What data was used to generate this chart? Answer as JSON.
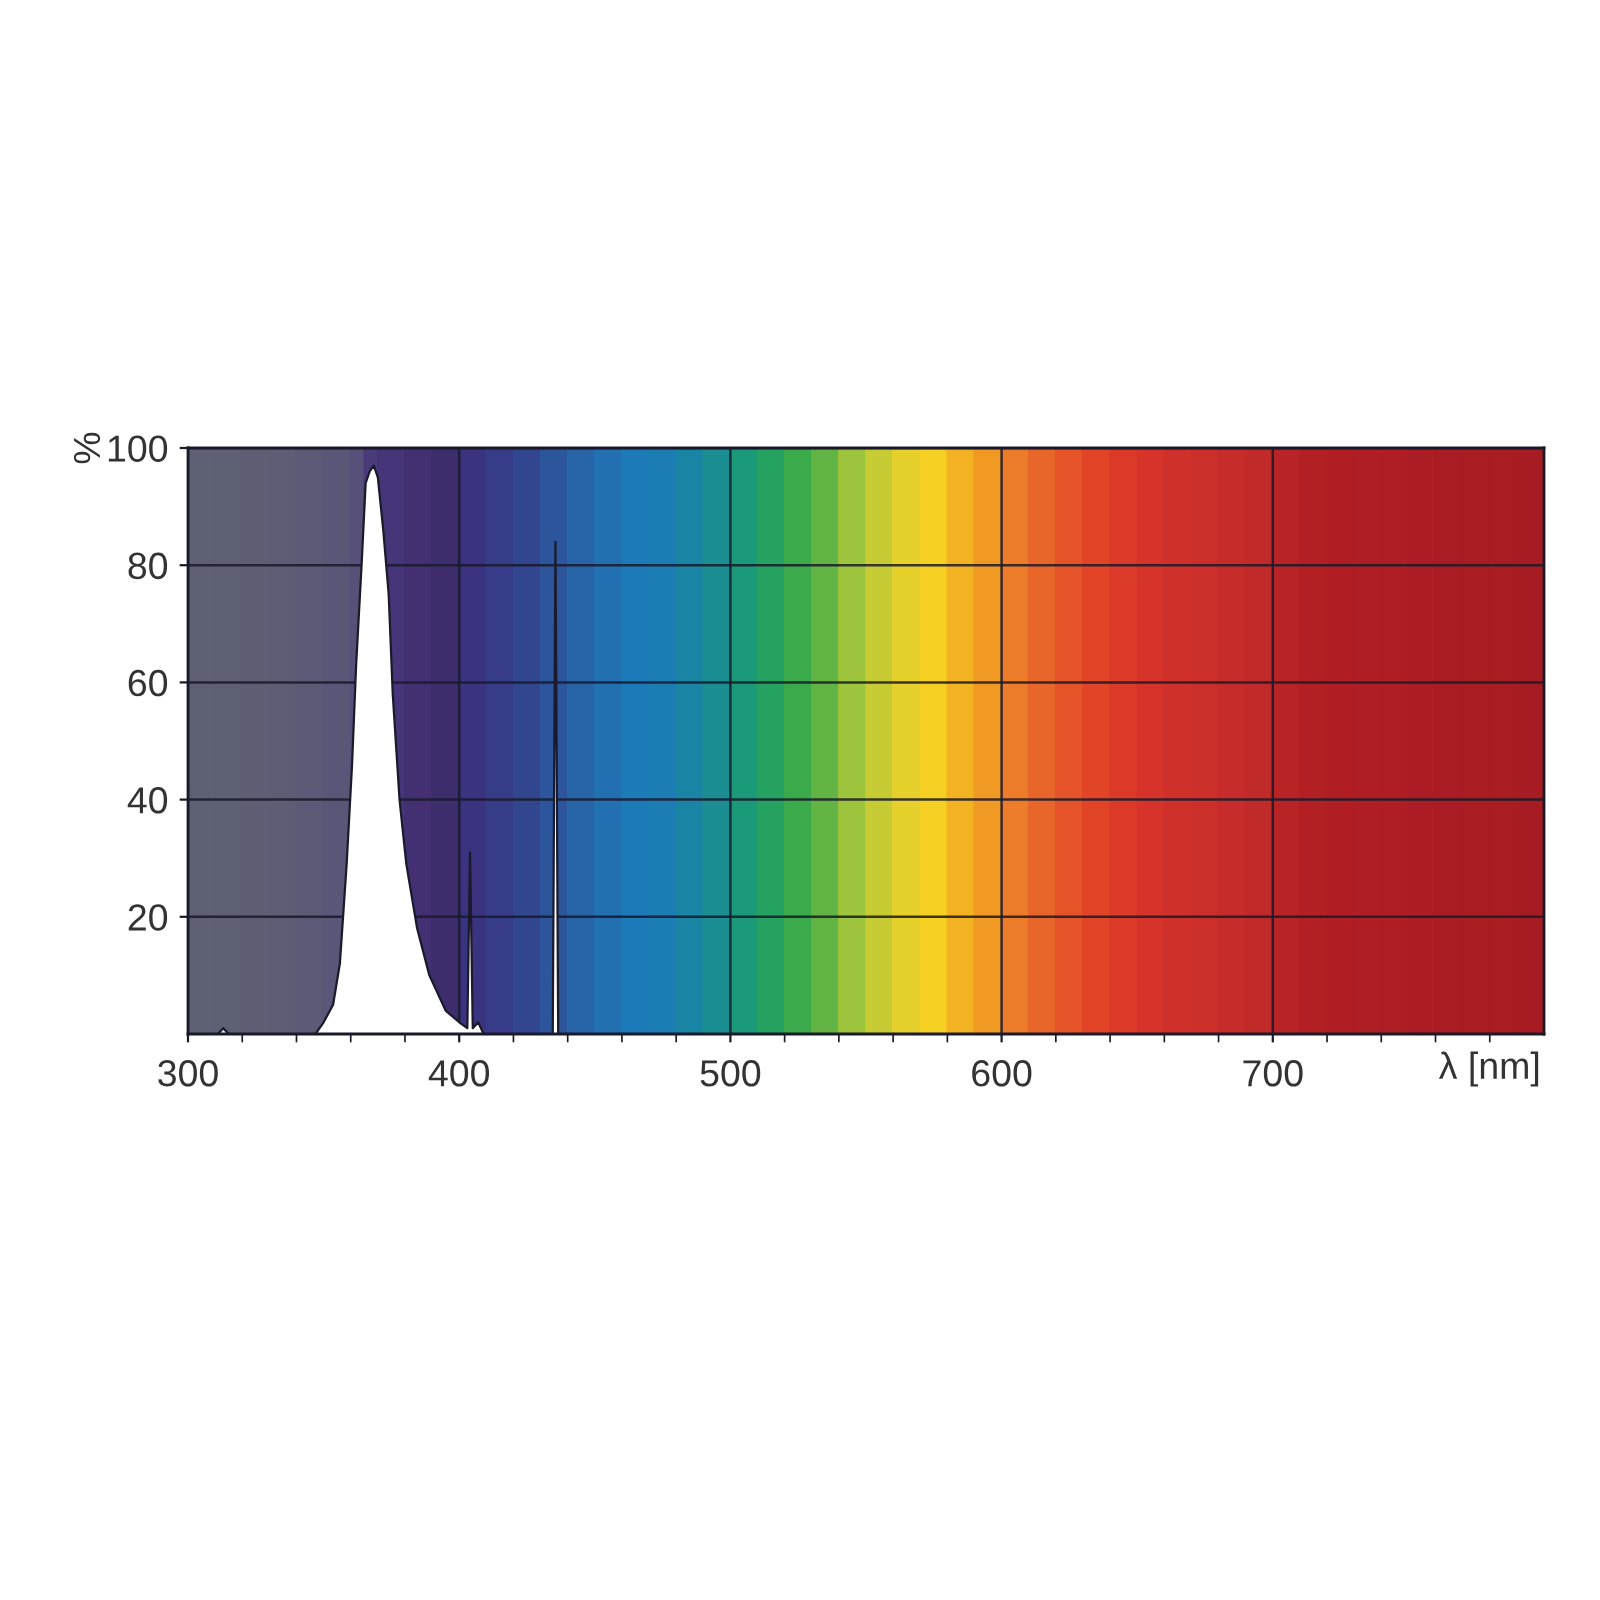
{
  "chart_data": {
    "type": "area",
    "xlabel": "λ [nm]",
    "ylabel": "%",
    "xlim": [
      300,
      800
    ],
    "ylim": [
      0,
      100
    ],
    "xticks": [
      300,
      {
        "value": 320,
        "label": null
      },
      {
        "value": 340,
        "label": null
      },
      {
        "value": 360,
        "label": null
      },
      {
        "value": 380,
        "label": null
      },
      400,
      {
        "value": 420,
        "label": null
      },
      {
        "value": 440,
        "label": null
      },
      {
        "value": 460,
        "label": null
      },
      {
        "value": 480,
        "label": null
      },
      500,
      {
        "value": 520,
        "label": null
      },
      {
        "value": 540,
        "label": null
      },
      {
        "value": 560,
        "label": null
      },
      {
        "value": 580,
        "label": null
      },
      600,
      {
        "value": 620,
        "label": null
      },
      {
        "value": 640,
        "label": null
      },
      {
        "value": 660,
        "label": null
      },
      {
        "value": 680,
        "label": null
      },
      700,
      {
        "value": 720,
        "label": null
      },
      {
        "value": 740,
        "label": null
      },
      {
        "value": 760,
        "label": null
      },
      {
        "value": 780,
        "label": null
      }
    ],
    "yticks": [
      20,
      40,
      60,
      80,
      100
    ],
    "grid": true,
    "bands": [
      {
        "axis": "x",
        "from": 300,
        "to": 310,
        "color": "#5e6074"
      },
      {
        "axis": "x",
        "from": 310,
        "to": 320,
        "color": "#5e6074"
      },
      {
        "axis": "x",
        "from": 320,
        "to": 330,
        "color": "#5e5f75"
      },
      {
        "axis": "x",
        "from": 330,
        "to": 340,
        "color": "#5d5e76"
      },
      {
        "axis": "x",
        "from": 340,
        "to": 350,
        "color": "#5c5b77"
      },
      {
        "axis": "x",
        "from": 350,
        "to": 360,
        "color": "#5a5678"
      },
      {
        "axis": "x",
        "from": 360,
        "to": 365,
        "color": "#575078"
      },
      {
        "axis": "x",
        "from": 365,
        "to": 370,
        "color": "#4a3a7a"
      },
      {
        "axis": "x",
        "from": 370,
        "to": 380,
        "color": "#47357a"
      },
      {
        "axis": "x",
        "from": 380,
        "to": 390,
        "color": "#433072"
      },
      {
        "axis": "x",
        "from": 390,
        "to": 400,
        "color": "#3d2d6c"
      },
      {
        "axis": "x",
        "from": 400,
        "to": 410,
        "color": "#3a3480"
      },
      {
        "axis": "x",
        "from": 410,
        "to": 420,
        "color": "#363c88"
      },
      {
        "axis": "x",
        "from": 420,
        "to": 430,
        "color": "#324690"
      },
      {
        "axis": "x",
        "from": 430,
        "to": 440,
        "color": "#2c559c"
      },
      {
        "axis": "x",
        "from": 440,
        "to": 450,
        "color": "#2865a8"
      },
      {
        "axis": "x",
        "from": 450,
        "to": 460,
        "color": "#2270b2"
      },
      {
        "axis": "x",
        "from": 460,
        "to": 470,
        "color": "#1d7ab8"
      },
      {
        "axis": "x",
        "from": 470,
        "to": 480,
        "color": "#1c7db4"
      },
      {
        "axis": "x",
        "from": 480,
        "to": 490,
        "color": "#1a84a4"
      },
      {
        "axis": "x",
        "from": 490,
        "to": 500,
        "color": "#1a8e92"
      },
      {
        "axis": "x",
        "from": 500,
        "to": 510,
        "color": "#1a9a78"
      },
      {
        "axis": "x",
        "from": 510,
        "to": 520,
        "color": "#26a260"
      },
      {
        "axis": "x",
        "from": 520,
        "to": 530,
        "color": "#3aaa4a"
      },
      {
        "axis": "x",
        "from": 530,
        "to": 540,
        "color": "#62b444"
      },
      {
        "axis": "x",
        "from": 540,
        "to": 550,
        "color": "#9cc43c"
      },
      {
        "axis": "x",
        "from": 550,
        "to": 560,
        "color": "#c8cc34"
      },
      {
        "axis": "x",
        "from": 560,
        "to": 570,
        "color": "#e6d02c"
      },
      {
        "axis": "x",
        "from": 570,
        "to": 580,
        "color": "#f5cf22"
      },
      {
        "axis": "x",
        "from": 580,
        "to": 590,
        "color": "#f3b222"
      },
      {
        "axis": "x",
        "from": 590,
        "to": 600,
        "color": "#f09a24"
      },
      {
        "axis": "x",
        "from": 600,
        "to": 610,
        "color": "#ec7c2a"
      },
      {
        "axis": "x",
        "from": 610,
        "to": 620,
        "color": "#e8662a"
      },
      {
        "axis": "x",
        "from": 620,
        "to": 630,
        "color": "#e55428"
      },
      {
        "axis": "x",
        "from": 630,
        "to": 640,
        "color": "#e24428"
      },
      {
        "axis": "x",
        "from": 640,
        "to": 650,
        "color": "#dc3a28"
      },
      {
        "axis": "x",
        "from": 650,
        "to": 660,
        "color": "#d6342a"
      },
      {
        "axis": "x",
        "from": 660,
        "to": 670,
        "color": "#d0302a"
      },
      {
        "axis": "x",
        "from": 670,
        "to": 680,
        "color": "#cc2e2a"
      },
      {
        "axis": "x",
        "from": 680,
        "to": 690,
        "color": "#c62c2a"
      },
      {
        "axis": "x",
        "from": 690,
        "to": 700,
        "color": "#c02a28"
      },
      {
        "axis": "x",
        "from": 700,
        "to": 710,
        "color": "#b82426"
      },
      {
        "axis": "x",
        "from": 710,
        "to": 720,
        "color": "#b22024"
      },
      {
        "axis": "x",
        "from": 720,
        "to": 730,
        "color": "#b01e24"
      },
      {
        "axis": "x",
        "from": 730,
        "to": 740,
        "color": "#ae1e24"
      },
      {
        "axis": "x",
        "from": 740,
        "to": 750,
        "color": "#ae1e24"
      },
      {
        "axis": "x",
        "from": 750,
        "to": 760,
        "color": "#ac1c24"
      },
      {
        "axis": "x",
        "from": 760,
        "to": 770,
        "color": "#aa1c23"
      },
      {
        "axis": "x",
        "from": 770,
        "to": 780,
        "color": "#a81c22"
      },
      {
        "axis": "x",
        "from": 780,
        "to": 790,
        "color": "#a81c22"
      },
      {
        "axis": "x",
        "from": 790,
        "to": 800,
        "color": "#a61c22"
      }
    ],
    "x": [
      300,
      311,
      313,
      315,
      347,
      350,
      353.5,
      356,
      358.5,
      360.5,
      362,
      364,
      365.5,
      367,
      368.5,
      370,
      372,
      374,
      375.5,
      378,
      380.5,
      384.5,
      389,
      395,
      400,
      403,
      404,
      405,
      407,
      409,
      434.5,
      435.5,
      436.5,
      800
    ],
    "series": [
      {
        "color": "#ffffff",
        "values": [
          0,
          0,
          1,
          0,
          0,
          2,
          5,
          12,
          29,
          46,
          63,
          80,
          94,
          96,
          97,
          95,
          86,
          75,
          58,
          40,
          29,
          18,
          10,
          4,
          2,
          1,
          31,
          1,
          2,
          0,
          0,
          84,
          0,
          0
        ]
      }
    ]
  }
}
